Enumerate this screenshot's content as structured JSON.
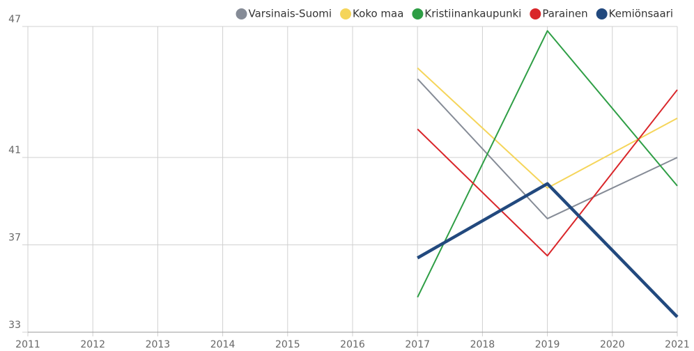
{
  "chart_data": {
    "type": "line",
    "x": [
      2017,
      2019,
      2021
    ],
    "xlim": [
      2011,
      2021
    ],
    "xticks": [
      2011,
      2012,
      2013,
      2014,
      2015,
      2016,
      2017,
      2018,
      2019,
      2020,
      2021
    ],
    "ylim": [
      33,
      47
    ],
    "yticks": [
      33,
      37,
      41,
      47
    ],
    "grid": true,
    "legend": "top",
    "series": [
      {
        "name": "Varsinais-Suomi",
        "color": "#858b96",
        "width": 2,
        "values": [
          44.6,
          38.2,
          41.0
        ]
      },
      {
        "name": "Koko maa",
        "color": "#f5d55a",
        "width": 2,
        "values": [
          45.1,
          39.6,
          42.8
        ]
      },
      {
        "name": "Kristiinankaupunki",
        "color": "#2e9e45",
        "width": 2,
        "values": [
          34.6,
          46.8,
          39.7
        ]
      },
      {
        "name": "Parainen",
        "color": "#d9262a",
        "width": 2,
        "values": [
          42.3,
          36.5,
          44.1
        ]
      },
      {
        "name": "Kemiönsaari",
        "color": "#22497e",
        "width": 4.5,
        "values": [
          36.4,
          39.8,
          33.7
        ]
      }
    ]
  }
}
